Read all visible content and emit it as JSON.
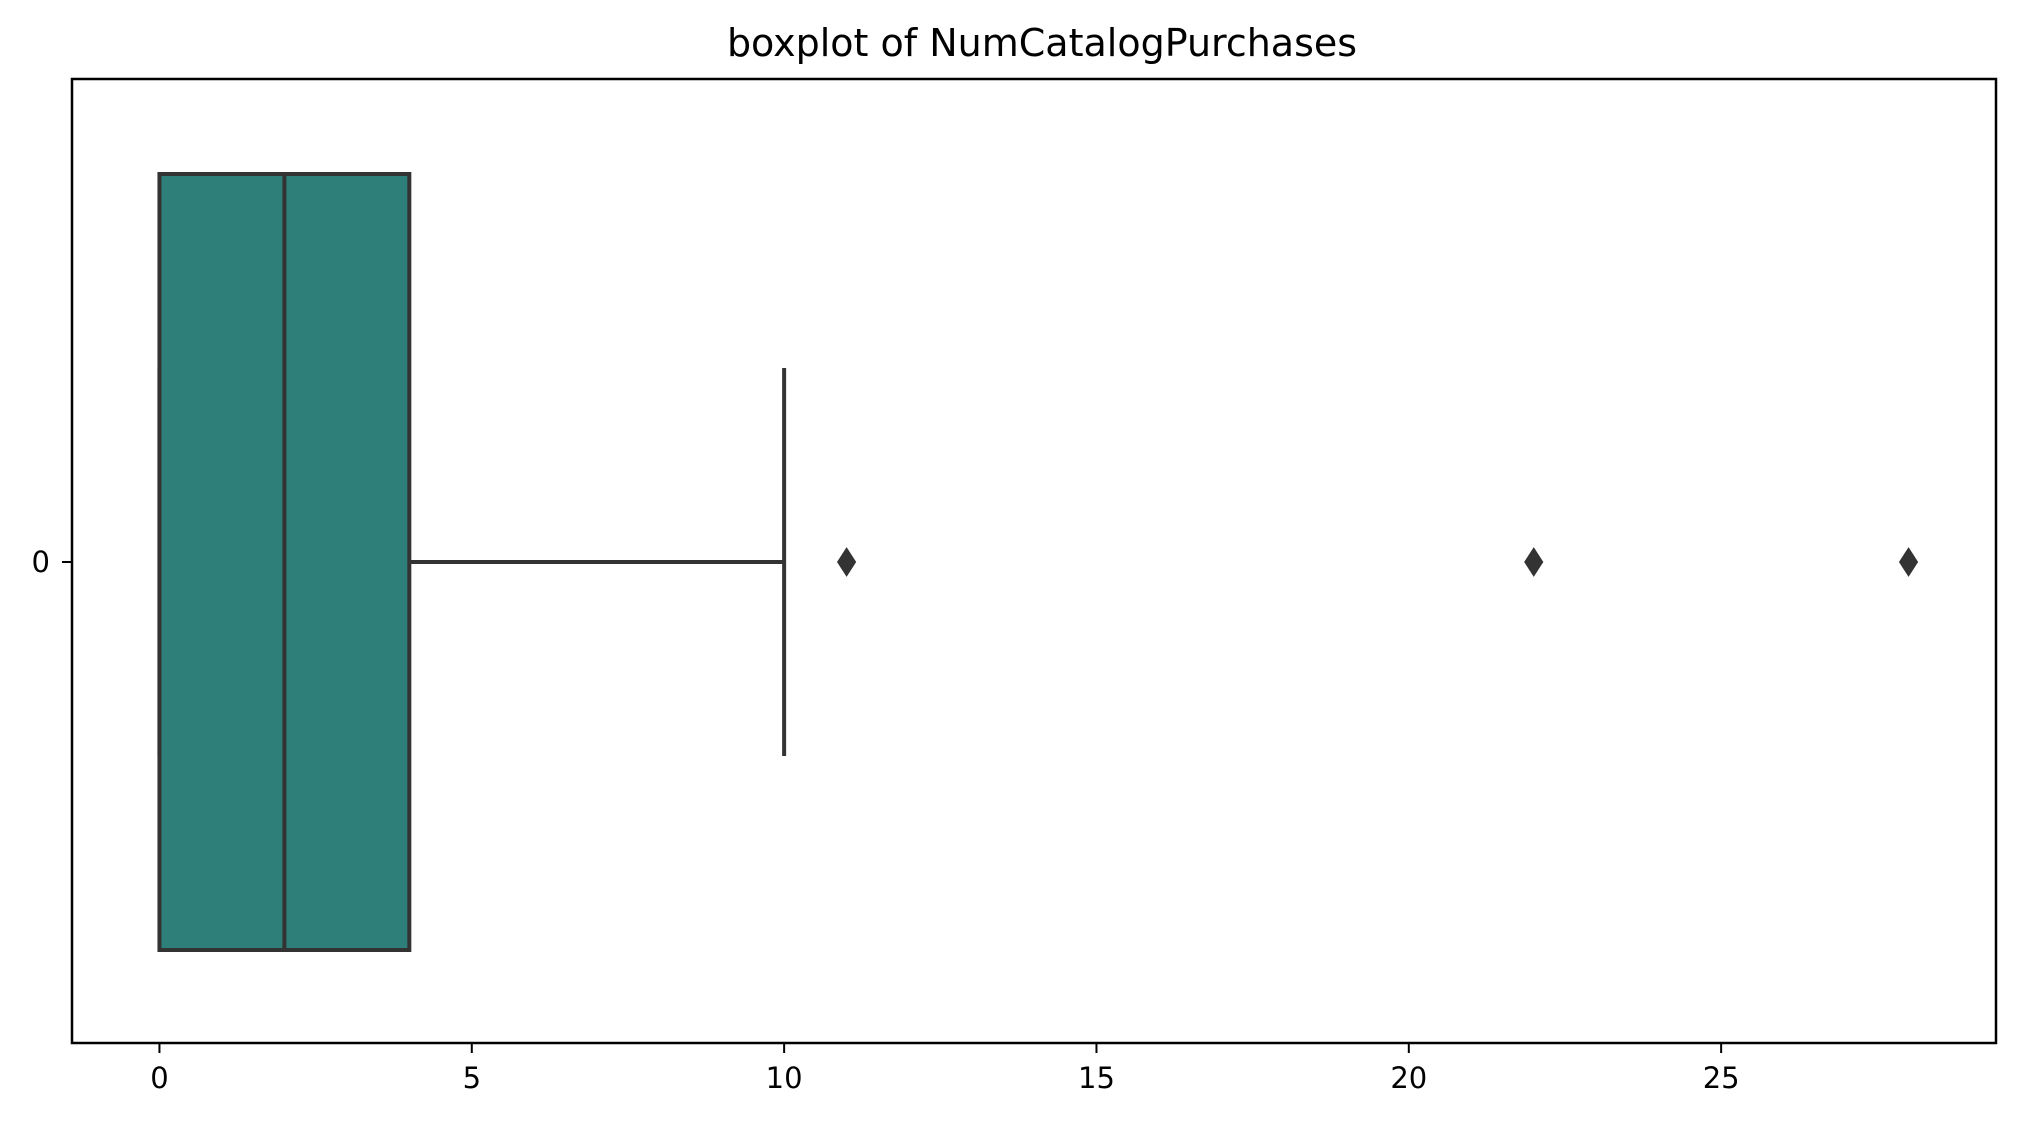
{
  "chart_data": {
    "type": "boxplot",
    "title": "boxplot of NumCatalogPurchases",
    "xlabel": "",
    "ylabel": "",
    "orientation": "horizontal",
    "categories": [
      "0"
    ],
    "xlim": [
      -1.4,
      29.4
    ],
    "xticks": [
      0,
      5,
      10,
      15,
      20,
      25
    ],
    "xtick_labels": [
      "0",
      "5",
      "10",
      "15",
      "20",
      "25"
    ],
    "grid": false,
    "box": {
      "category": "0",
      "whisker_low": 0,
      "q1": 0,
      "median": 2,
      "q3": 4,
      "whisker_high": 10,
      "outliers": [
        11,
        22,
        28
      ],
      "color": "#2e7f7a",
      "edge_color": "#333333"
    }
  }
}
